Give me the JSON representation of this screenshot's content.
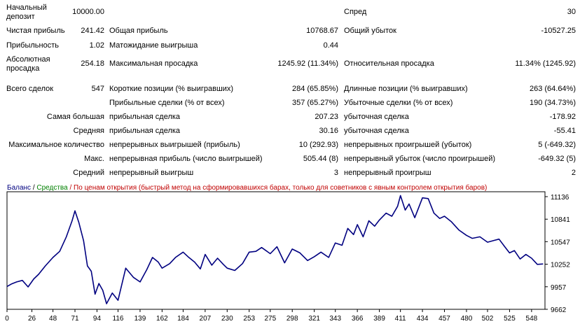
{
  "stats": {
    "initial_deposit": {
      "label": "Начальный депозит",
      "value": "10000.00"
    },
    "spread": {
      "label": "Спред",
      "value": "30"
    },
    "net_profit": {
      "label": "Чистая прибыль",
      "value": "241.42"
    },
    "gross_profit": {
      "label": "Общая прибыль",
      "value": "10768.67"
    },
    "gross_loss": {
      "label": "Общий убыток",
      "value": "-10527.25"
    },
    "profit_factor": {
      "label": "Прибыльность",
      "value": "1.02"
    },
    "expected_payoff": {
      "label": "Матожидание выигрыша",
      "value": "0.44"
    },
    "abs_drawdown": {
      "label": "Абсолютная просадка",
      "value": "254.18"
    },
    "max_drawdown": {
      "label": "Максимальная просадка",
      "value": "1245.92 (11.34%)"
    },
    "rel_drawdown": {
      "label": "Относительная просадка",
      "value": "11.34% (1245.92)"
    },
    "total_trades": {
      "label": "Всего сделок",
      "value": "547"
    },
    "short_positions": {
      "label": "Короткие позиции (% выигравших)",
      "value": "284 (65.85%)"
    },
    "long_positions": {
      "label": "Длинные позиции (% выигравших)",
      "value": "263 (64.64%)"
    },
    "profit_trades": {
      "label": "Прибыльные сделки (% от всех)",
      "value": "357 (65.27%)"
    },
    "loss_trades": {
      "label": "Убыточные сделки (% от всех)",
      "value": "190 (34.73%)"
    },
    "largest": {
      "label": "Самая большая",
      "profit_label": "прибыльная сделка",
      "profit_value": "207.23",
      "loss_label": "убыточная сделка",
      "loss_value": "-178.92"
    },
    "average": {
      "label": "Средняя",
      "profit_label": "прибыльная сделка",
      "profit_value": "30.16",
      "loss_label": "убыточная сделка",
      "loss_value": "-55.41"
    },
    "max_consecutive": {
      "label": "Максимальное количество",
      "wins_label": "непрерывных выигрышей (прибыль)",
      "wins_value": "10 (292.93)",
      "losses_label": "непрерывных проигрышей (убыток)",
      "losses_value": "5 (-649.32)"
    },
    "max_consecutive_amount": {
      "label": "Макс.",
      "profit_label": "непрерывная прибыль (число выигрышей)",
      "profit_value": "505.44 (8)",
      "loss_label": "непрерывный убыток (число проигрышей)",
      "loss_value": "-649.32 (5)"
    },
    "avg_consecutive": {
      "label": "Средний",
      "wins_label": "непрерывный выигрыш",
      "wins_value": "3",
      "losses_label": "непрерывный проигрыш",
      "losses_value": "2"
    }
  },
  "chart_legend": {
    "balance": "Баланс",
    "separator": " / ",
    "equity": "Средства",
    "mode": " / По ценам открытия (быстрый метод на сформировавшихся барах, только для советников с явным контролем открытия баров)"
  },
  "chart_data": {
    "type": "line",
    "x_ticks": [
      0,
      26,
      48,
      71,
      94,
      116,
      139,
      162,
      184,
      207,
      230,
      253,
      275,
      298,
      321,
      343,
      366,
      389,
      411,
      434,
      457,
      480,
      502,
      525,
      548
    ],
    "y_ticks": [
      9662,
      9957,
      10252,
      10547,
      10841,
      11136
    ],
    "xlim": [
      0,
      562
    ],
    "ylim": [
      9662,
      11200
    ],
    "legend": "top-left",
    "series": [
      {
        "name": "Баланс",
        "color": "#000080",
        "x": [
          0,
          5,
          10,
          16,
          22,
          28,
          33,
          40,
          48,
          55,
          62,
          68,
          71,
          75,
          80,
          84,
          88,
          92,
          96,
          100,
          104,
          110,
          116,
          124,
          132,
          139,
          146,
          152,
          158,
          162,
          170,
          176,
          184,
          190,
          196,
          202,
          207,
          214,
          220,
          226,
          230,
          238,
          246,
          253,
          260,
          266,
          275,
          282,
          290,
          298,
          306,
          314,
          321,
          328,
          336,
          343,
          350,
          356,
          362,
          366,
          372,
          378,
          384,
          389,
          396,
          402,
          408,
          411,
          416,
          420,
          426,
          430,
          434,
          440,
          446,
          452,
          457,
          464,
          472,
          480,
          486,
          494,
          502,
          508,
          514,
          520,
          525,
          530,
          536,
          542,
          548,
          554,
          560
        ],
        "y": [
          9960,
          9995,
          10020,
          10040,
          9955,
          10060,
          10120,
          10230,
          10340,
          10420,
          10610,
          10820,
          10950,
          10800,
          10560,
          10230,
          10160,
          9860,
          10000,
          9910,
          9735,
          9875,
          9780,
          10200,
          10080,
          10020,
          10180,
          10340,
          10280,
          10200,
          10260,
          10340,
          10410,
          10340,
          10280,
          10190,
          10380,
          10240,
          10330,
          10250,
          10200,
          10170,
          10260,
          10410,
          10420,
          10470,
          10390,
          10480,
          10270,
          10450,
          10400,
          10300,
          10350,
          10410,
          10340,
          10530,
          10500,
          10720,
          10640,
          10770,
          10610,
          10820,
          10750,
          10830,
          10920,
          10880,
          11010,
          11150,
          10960,
          11040,
          10860,
          10990,
          11120,
          11110,
          10920,
          10850,
          10880,
          10810,
          10700,
          10630,
          10590,
          10610,
          10540,
          10560,
          10580,
          10480,
          10400,
          10430,
          10320,
          10380,
          10330,
          10250,
          10255
        ]
      }
    ]
  }
}
